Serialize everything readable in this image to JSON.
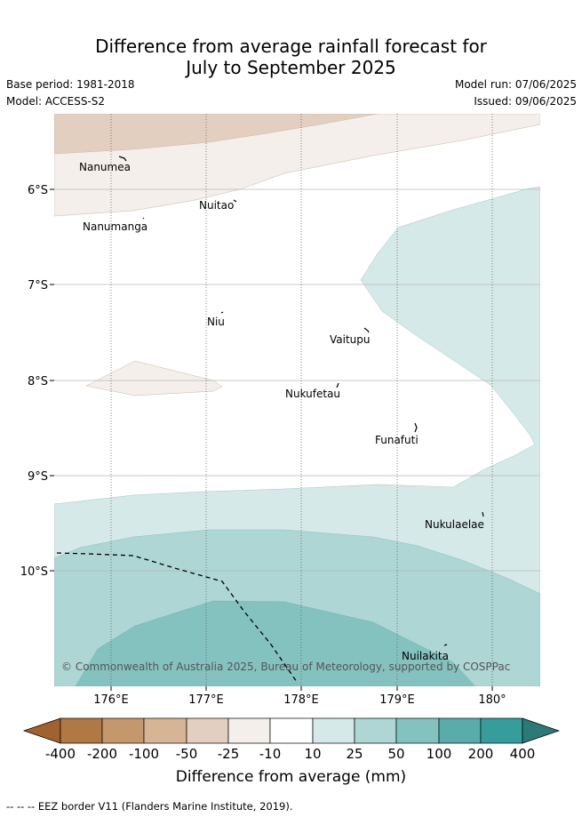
{
  "title_line1": "Difference from average rainfall forecast for",
  "title_line2": "July to September 2025",
  "base_period": "Base period: 1981-2018",
  "model": "Model: ACCESS-S2",
  "model_run": "Model run: 07/06/2025",
  "issued": "Issued: 09/06/2025",
  "copyright": "© Commonwealth of Australia 2025, Bureau of Meteorology, supported by COSPPac",
  "footer": "--  --  -- EEZ border V11 (Flanders Marine Institute, 2019).",
  "axes": {
    "x_ticks": [
      "176°E",
      "177°E",
      "178°E",
      "179°E",
      "180°"
    ],
    "y_ticks": [
      "6°S",
      "7°S",
      "8°S",
      "9°S",
      "10°S"
    ]
  },
  "islands": [
    {
      "name": "Nanumea"
    },
    {
      "name": "Nuitao"
    },
    {
      "name": "Nanumanga"
    },
    {
      "name": "Niu"
    },
    {
      "name": "Vaitupu"
    },
    {
      "name": "Nukufetau"
    },
    {
      "name": "Funafuti"
    },
    {
      "name": "Nukulaelae"
    },
    {
      "name": "Nuilakita"
    }
  ],
  "colorbar": {
    "title": "Difference from average (mm)",
    "labels": [
      "-400",
      "-200",
      "-100",
      "-50",
      "-25",
      "-10",
      "10",
      "25",
      "50",
      "100",
      "200",
      "400"
    ],
    "colors": {
      "lt_neg400": "#a0622e",
      "neg400_neg200": "#b07844",
      "neg200_neg100": "#c4976c",
      "neg100_neg50": "#d6b596",
      "neg50_neg25": "#e3cfbf",
      "neg25_neg10": "#f4efea",
      "neg10_10": "#ffffff",
      "p10_25": "#d5e9e8",
      "p25_50": "#add6d5",
      "p50_100": "#84c2c0",
      "p100_200": "#5aacab",
      "p200_400": "#379d9c",
      "gt_400": "#2b7978"
    }
  }
}
